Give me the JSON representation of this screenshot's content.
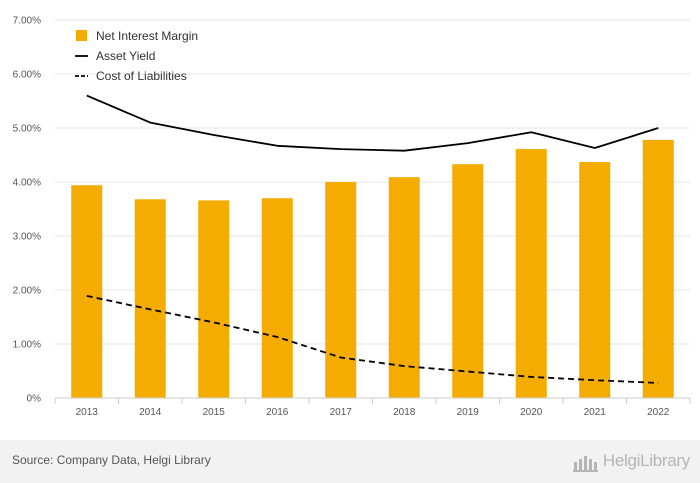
{
  "chart_data": {
    "type": "bar",
    "categories": [
      "2013",
      "2014",
      "2015",
      "2016",
      "2017",
      "2018",
      "2019",
      "2020",
      "2021",
      "2022"
    ],
    "series": [
      {
        "name": "Net Interest Margin",
        "kind": "bar",
        "color": "#f5ac00",
        "values": [
          3.94,
          3.68,
          3.66,
          3.7,
          4.0,
          4.09,
          4.33,
          4.61,
          4.37,
          4.78
        ]
      },
      {
        "name": "Asset Yield",
        "kind": "line",
        "style": "solid",
        "color": "#000000",
        "values": [
          5.6,
          5.1,
          4.87,
          4.67,
          4.61,
          4.58,
          4.72,
          4.92,
          4.63,
          5.0
        ]
      },
      {
        "name": "Cost of Liabilities",
        "kind": "line",
        "style": "dashed",
        "color": "#000000",
        "values": [
          1.89,
          1.64,
          1.4,
          1.13,
          0.75,
          0.59,
          0.49,
          0.39,
          0.33,
          0.28
        ]
      }
    ],
    "yticks": [
      "0%",
      "1.00%",
      "2.00%",
      "3.00%",
      "4.00%",
      "5.00%",
      "6.00%",
      "7.00%"
    ],
    "ylim": [
      0,
      7
    ],
    "grid": true,
    "legend_position": "top-left"
  },
  "footer": {
    "source": "Source: Company Data, Helgi Library",
    "logo_text": "HelgiLibrary"
  }
}
